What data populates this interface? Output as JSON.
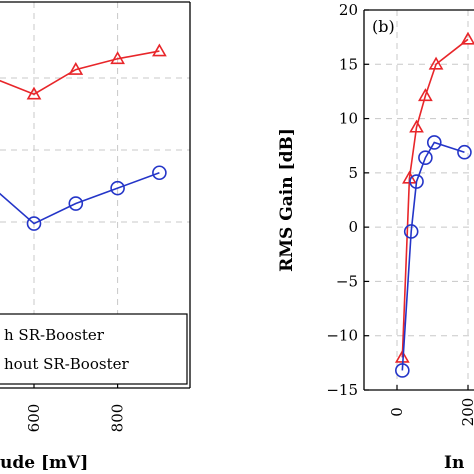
{
  "chart_data": [
    {
      "type": "line",
      "panel_label": "",
      "xlabel": "ude [mV]",
      "ylabel": "",
      "x_ticks": [
        "600",
        "800"
      ],
      "series": [
        {
          "name": "h SR-Booster",
          "color": "#e8262a",
          "marker": "triangle",
          "x": [
            600,
            700,
            800,
            900
          ],
          "y": [
            17.0,
            18.6,
            19.3,
            19.8
          ]
        },
        {
          "name": "hout SR-Booster",
          "color": "#2435c8",
          "marker": "circle",
          "x": [
            600,
            700,
            800,
            900
          ],
          "y": [
            8.6,
            9.9,
            10.9,
            11.9
          ]
        }
      ],
      "legend_position": "bottom-left"
    },
    {
      "type": "line",
      "panel_label": "(b)",
      "xlabel": "In",
      "ylabel": "RMS Gain [dB]",
      "ylim": [
        -15,
        20
      ],
      "y_ticks": [
        "−15",
        "−10",
        "−5",
        "0",
        "5",
        "10",
        "15",
        "20"
      ],
      "x_ticks": [
        "0",
        "200"
      ],
      "series": [
        {
          "name": "",
          "color": "#e8262a",
          "marker": "triangle",
          "x": [
            15,
            35,
            55,
            80,
            110,
            200
          ],
          "y": [
            -12,
            4.5,
            9.2,
            12.1,
            15,
            17.3
          ]
        },
        {
          "name": "",
          "color": "#2435c8",
          "marker": "circle",
          "x": [
            15,
            40,
            55,
            80,
            105,
            190
          ],
          "y": [
            -13.2,
            -0.4,
            4.2,
            6.4,
            7.8,
            6.9
          ]
        }
      ],
      "grid": true
    }
  ]
}
